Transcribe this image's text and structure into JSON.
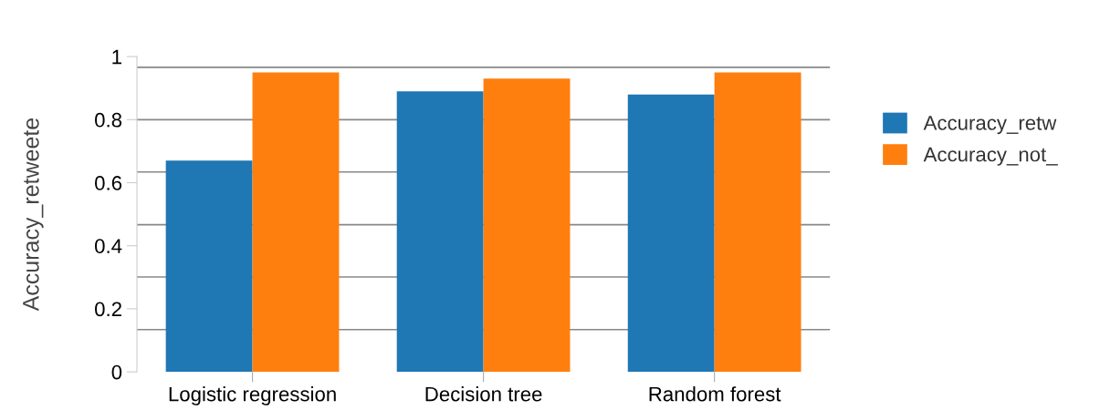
{
  "chart_data": {
    "type": "bar",
    "ylabel": "Accuracy_retweete",
    "categories": [
      "Logistic regression",
      "Decision tree",
      "Random forest"
    ],
    "series": [
      {
        "name": "Accuracy_retw",
        "color": "#1f77b4",
        "values": [
          0.67,
          0.89,
          0.88
        ]
      },
      {
        "name": "Accuracy_not_",
        "color": "#ff7f0e",
        "values": [
          0.95,
          0.93,
          0.95
        ]
      }
    ],
    "ylim": [
      0,
      1
    ],
    "yticks": [
      0,
      0.2,
      0.4,
      0.6,
      0.8,
      1
    ],
    "ref_lines": [
      {
        "axis": "y",
        "value": 0.134,
        "color": "#888888"
      },
      {
        "axis": "y",
        "value": 0.301,
        "color": "#888888"
      },
      {
        "axis": "y",
        "value": 0.467,
        "color": "#888888"
      },
      {
        "axis": "y",
        "value": 0.634,
        "color": "#888888"
      },
      {
        "axis": "y",
        "value": 0.8,
        "color": "#888888"
      },
      {
        "axis": "y",
        "value": 0.966,
        "color": "#888888"
      }
    ],
    "grid": false,
    "legend": "right"
  }
}
